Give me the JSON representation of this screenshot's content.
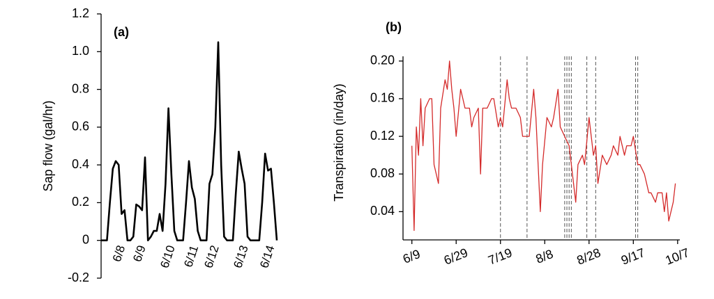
{
  "chart_data": [
    {
      "type": "line",
      "annotation": "(a)",
      "y_label": "Sap flow (gal/hr)",
      "color": "#000000",
      "categories": [
        null,
        null,
        null,
        null,
        null,
        null,
        "6/8",
        null,
        null,
        null,
        null,
        null,
        null,
        "6/9",
        null,
        null,
        null,
        null,
        null,
        null,
        null,
        null,
        null,
        "6/10",
        null,
        null,
        null,
        null,
        null,
        null,
        null,
        "6/11",
        null,
        null,
        null,
        null,
        null,
        null,
        "6/12",
        null,
        null,
        null,
        null,
        null,
        null,
        null,
        null,
        null,
        "6/13",
        null,
        null,
        null,
        null,
        null,
        null,
        null,
        null,
        "6/14",
        null,
        null,
        null
      ],
      "values": [
        0,
        0,
        0,
        0.2,
        0.38,
        0.42,
        0.4,
        0.14,
        0.16,
        0,
        0,
        0.02,
        0.19,
        0.18,
        0.16,
        0.44,
        0,
        0.02,
        0.05,
        0.05,
        0.14,
        0.05,
        0.3,
        0.7,
        0.35,
        0.05,
        0,
        0,
        0,
        0.2,
        0.42,
        0.28,
        0.22,
        0.05,
        0,
        0,
        0,
        0.3,
        0.35,
        0.6,
        1.05,
        0.4,
        0.02,
        0,
        0,
        0,
        0.25,
        0.47,
        0.38,
        0.3,
        0.02,
        0,
        0,
        0,
        0,
        0.2,
        0.46,
        0.37,
        0.38,
        0.2,
        0
      ],
      "ylim": [
        -0.2,
        1.2
      ],
      "yticks": [
        -0.2,
        0,
        0.2,
        0.4,
        0.6,
        0.8,
        {
          "value": 1,
          "label": "1.0"
        },
        1.2
      ]
    },
    {
      "type": "date-line",
      "annotation": "(b)",
      "y_label": "Transpiration (in/day)",
      "color": "#d42a2a",
      "x": [
        "6/9",
        "6/10",
        "6/11",
        "6/12",
        "6/13",
        "6/14",
        "6/15",
        "6/17",
        "6/18",
        "6/19",
        "6/21",
        "6/22",
        "6/24",
        "6/25",
        "6/26",
        "6/27",
        "6/28",
        "6/29",
        "7/1",
        "7/2",
        "7/3",
        "7/5",
        "7/6",
        "7/7",
        "7/9",
        "7/10",
        "7/11",
        "7/13",
        "7/15",
        "7/16",
        "7/18",
        "7/19",
        "7/20",
        "7/22",
        "7/23",
        "7/24",
        "7/26",
        "7/28",
        "7/29",
        "7/30",
        "8/1",
        "8/3",
        "8/4",
        "8/6",
        "8/7",
        "8/9",
        "8/11",
        "8/12",
        "8/14",
        "8/15",
        "8/17",
        "8/19",
        "8/20",
        "8/22",
        "8/23",
        "8/25",
        "8/26",
        "8/28",
        "8/30",
        "8/31",
        "9/1",
        "9/3",
        "9/5",
        "9/7",
        "9/8",
        "9/10",
        "9/11",
        "9/13",
        "9/14",
        "9/16",
        "9/17",
        "9/19",
        "9/20",
        "9/22",
        "9/24",
        "9/25",
        "9/27",
        "9/28",
        "9/30",
        "10/1",
        "10/2",
        "10/3",
        "10/5",
        "10/6"
      ],
      "values": [
        0.11,
        0.02,
        0.13,
        0.1,
        0.16,
        0.11,
        0.15,
        0.16,
        0.16,
        0.09,
        0.07,
        0.15,
        0.18,
        0.17,
        0.2,
        0.17,
        0.15,
        0.12,
        0.17,
        0.16,
        0.15,
        0.15,
        0.13,
        0.14,
        0.15,
        0.08,
        0.15,
        0.15,
        0.16,
        0.16,
        0.13,
        0.14,
        0.13,
        0.18,
        0.16,
        0.15,
        0.15,
        0.14,
        0.12,
        0.12,
        0.12,
        0.17,
        0.14,
        0.04,
        0.09,
        0.14,
        0.13,
        0.14,
        0.17,
        0.13,
        0.12,
        0.11,
        0.09,
        0.05,
        0.09,
        0.1,
        0.09,
        0.14,
        0.1,
        0.11,
        0.07,
        0.1,
        0.09,
        0.1,
        0.11,
        0.1,
        0.12,
        0.1,
        0.11,
        0.11,
        0.12,
        0.09,
        0.09,
        0.08,
        0.06,
        0.06,
        0.05,
        0.06,
        0.06,
        0.04,
        0.06,
        0.03,
        0.05,
        0.07
      ],
      "vlines": [
        "7/19",
        "7/31",
        "8/17",
        "8/18",
        "8/19",
        "8/20",
        "8/27",
        "8/31",
        "9/18",
        "9/19"
      ],
      "xlim": [
        "6/5",
        "10/8"
      ],
      "xticks": [
        "6/9",
        "6/29",
        "7/19",
        "8/8",
        "8/28",
        "9/17",
        "10/7"
      ],
      "ylim": [
        0.01,
        0.205
      ],
      "yticks": [
        0.04,
        0.08,
        0.12,
        0.16,
        {
          "value": 0.2,
          "label": "0.20"
        }
      ]
    }
  ]
}
